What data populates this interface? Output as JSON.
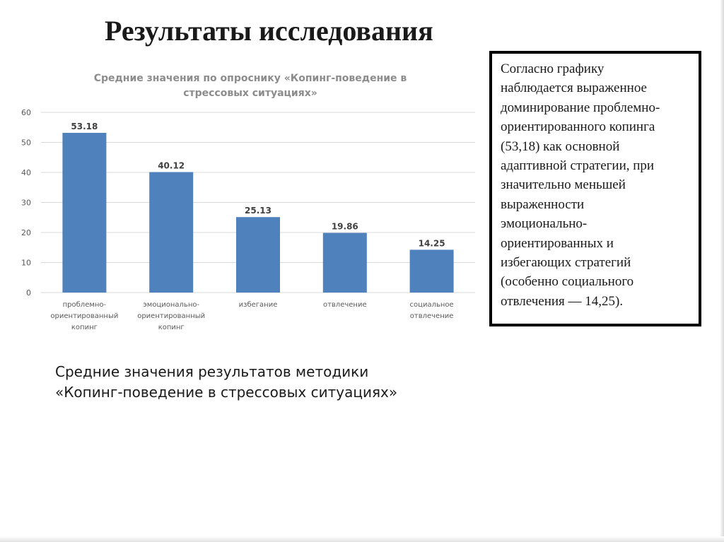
{
  "slide": {
    "title": "Результаты исследования",
    "caption_lines": [
      "Средние значения результатов методики",
      "«Копинг-поведение в стрессовых ситуациях»"
    ],
    "note_lines": [
      "Согласно графику",
      "наблюдается выраженное",
      "доминирование проблемно-",
      "ориентированного копинга",
      "(53,18) как основной",
      "адаптивной стратегии, при",
      "значительно меньшей",
      "выраженности",
      "эмоционально-",
      "ориентированных и",
      "избегающих стратегий",
      "(особенно социального",
      "отвлечения — 14,25)."
    ]
  },
  "chart_data": {
    "type": "bar",
    "title_lines": [
      "Средние значения по опроснику «Копинг-поведение в",
      "стрессовых ситуациях»"
    ],
    "categories": [
      [
        "проблемно-",
        "ориентированный",
        "копинг"
      ],
      [
        "эмоционально-",
        "ориентированный",
        "копинг"
      ],
      [
        "избегание"
      ],
      [
        "отвлечение"
      ],
      [
        "социальное",
        "отвлечение"
      ]
    ],
    "values": [
      53.18,
      40.12,
      25.13,
      19.86,
      14.25
    ],
    "data_labels": [
      "53.18",
      "40.12",
      "25.13",
      "19.86",
      "14.25"
    ],
    "ylim": [
      0,
      60
    ],
    "yticks": [
      0,
      10,
      20,
      30,
      40,
      50,
      60
    ],
    "grid": true,
    "legend": "none",
    "bar_color": "#4f81bd",
    "grid_color": "#d9d9d9",
    "xlabel": "",
    "ylabel": ""
  }
}
